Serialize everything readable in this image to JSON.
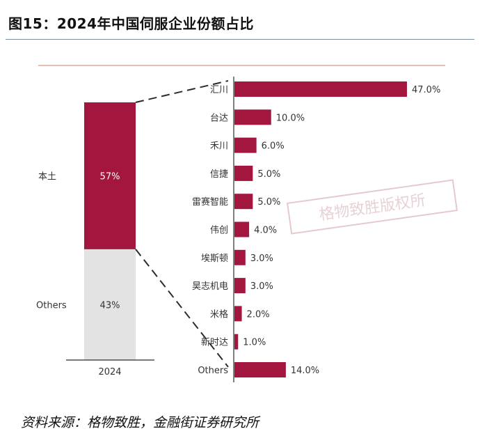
{
  "figure_title": "图15：2024年中国伺服企业份额占比",
  "source_note": "资料来源：格物致胜，金融街证券研究所",
  "watermark": "格物致胜版权所",
  "colors": {
    "bar": "#a3173f",
    "others_stack": "#e3e3e3",
    "line": "#2b2b2b",
    "accent_rule": "#d07a6a"
  },
  "chart_data": [
    {
      "type": "bar",
      "orientation": "vertical-stacked",
      "categories": [
        "2024"
      ],
      "series": [
        {
          "name": "本土",
          "values": [
            57
          ],
          "label": "57%"
        },
        {
          "name": "Others",
          "values": [
            43
          ],
          "label": "43%"
        }
      ],
      "ylim": [
        0,
        100
      ]
    },
    {
      "type": "bar",
      "orientation": "horizontal",
      "categories": [
        "汇川",
        "台达",
        "禾川",
        "信捷",
        "雷赛智能",
        "伟创",
        "埃斯顿",
        "昊志机电",
        "米格",
        "新时达",
        "Others"
      ],
      "values": [
        47.0,
        10.0,
        6.0,
        5.0,
        5.0,
        4.0,
        3.0,
        3.0,
        2.0,
        1.0,
        14.0
      ],
      "labels": [
        "47.0%",
        "10.0%",
        "6.0%",
        "5.0%",
        "5.0%",
        "4.0%",
        "3.0%",
        "3.0%",
        "2.0%",
        "1.0%",
        "14.0%"
      ],
      "xlim": [
        0,
        47
      ]
    }
  ]
}
